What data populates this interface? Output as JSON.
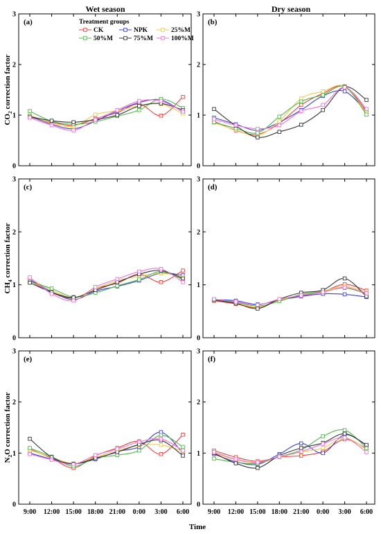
{
  "header": {
    "wet_title": "Wet season",
    "dry_title": "Dry season"
  },
  "x_axis_title": "Time",
  "legend": {
    "title": "Treatment groups",
    "entries": [
      "CK",
      "NPK",
      "25%M",
      "50%M",
      "75%M",
      "100%M"
    ],
    "placement": "top-left of panel (a)"
  },
  "colors": {
    "CK": "#e8413c",
    "NPK": "#3a3fd6",
    "25%M": "#f2c84b",
    "50%M": "#4fb848",
    "75%M": "#333333",
    "100%M": "#ef72d6"
  },
  "y_labels": {
    "co2": {
      "pre": "CO",
      "sub": "2",
      "post": " correction factor"
    },
    "ch4": {
      "pre": "CH",
      "sub": "4",
      "post": " correction factor"
    },
    "n2o": {
      "pre": "N",
      "sub": "2",
      "post": "O correction factor"
    }
  },
  "chart_data": [
    {
      "type": "line",
      "panel": "(a)",
      "season": "Wet season",
      "ylabel": "CO2 correction factor",
      "categories": [
        "9:00",
        "12:00",
        "15:00",
        "18:00",
        "21:00",
        "0:00",
        "3:00",
        "6:00"
      ],
      "ylim": [
        0,
        3
      ],
      "yticks": [
        0,
        1,
        2,
        3
      ],
      "grid": false,
      "series": [
        {
          "name": "CK",
          "values": [
            0.96,
            0.86,
            0.8,
            0.93,
            1.05,
            1.22,
            0.99,
            1.36
          ]
        },
        {
          "name": "NPK",
          "values": [
            0.98,
            0.82,
            0.73,
            0.88,
            1.08,
            1.25,
            1.3,
            1.06
          ]
        },
        {
          "name": "25%M",
          "values": [
            1.0,
            0.84,
            0.78,
            1.01,
            1.09,
            1.18,
            1.22,
            1.03
          ]
        },
        {
          "name": "50%M",
          "values": [
            1.08,
            0.88,
            0.82,
            0.87,
            0.98,
            1.1,
            1.32,
            1.14
          ]
        },
        {
          "name": "75%M",
          "values": [
            0.97,
            0.89,
            0.86,
            0.91,
            1.0,
            1.18,
            1.23,
            1.1
          ]
        },
        {
          "name": "100%M",
          "values": [
            0.95,
            0.8,
            0.7,
            0.91,
            1.1,
            1.28,
            1.28,
            1.07
          ]
        }
      ]
    },
    {
      "type": "line",
      "panel": "(b)",
      "season": "Dry season",
      "ylabel": "CO2 correction factor",
      "categories": [
        "9:00",
        "12:00",
        "15:00",
        "18:00",
        "21:00",
        "0:00",
        "3:00",
        "6:00"
      ],
      "ylim": [
        0,
        3
      ],
      "yticks": [
        0,
        1,
        2,
        3
      ],
      "grid": false,
      "series": [
        {
          "name": "CK",
          "values": [
            0.88,
            0.7,
            0.62,
            0.84,
            1.2,
            1.43,
            1.57,
            1.08
          ]
        },
        {
          "name": "NPK",
          "values": [
            0.95,
            0.82,
            0.7,
            0.86,
            1.1,
            1.38,
            1.47,
            1.07
          ]
        },
        {
          "name": "25%M",
          "values": [
            0.85,
            0.71,
            0.6,
            0.88,
            1.33,
            1.47,
            1.57,
            1.04
          ]
        },
        {
          "name": "50%M",
          "values": [
            0.86,
            0.74,
            0.65,
            0.97,
            1.27,
            1.4,
            1.56,
            1.01
          ]
        },
        {
          "name": "75%M",
          "values": [
            1.12,
            0.79,
            0.56,
            0.67,
            0.81,
            1.1,
            1.56,
            1.3
          ]
        },
        {
          "name": "100%M",
          "values": [
            0.92,
            0.8,
            0.73,
            0.8,
            1.08,
            1.2,
            1.55,
            1.12
          ]
        }
      ]
    },
    {
      "type": "line",
      "panel": "(c)",
      "season": "Wet season",
      "ylabel": "CH4 correction factor",
      "categories": [
        "9:00",
        "12:00",
        "15:00",
        "18:00",
        "21:00",
        "0:00",
        "3:00",
        "6:00"
      ],
      "ylim": [
        0,
        3
      ],
      "yticks": [
        0,
        1,
        2,
        3
      ],
      "grid": false,
      "series": [
        {
          "name": "CK",
          "values": [
            1.08,
            0.85,
            0.75,
            0.93,
            1.03,
            1.2,
            1.05,
            1.27
          ]
        },
        {
          "name": "NPK",
          "values": [
            1.1,
            0.87,
            0.72,
            0.88,
            0.97,
            1.08,
            1.22,
            1.18
          ]
        },
        {
          "name": "25%M",
          "values": [
            1.12,
            0.9,
            0.76,
            0.93,
            1.08,
            1.16,
            1.22,
            1.15
          ]
        },
        {
          "name": "50%M",
          "values": [
            1.06,
            0.93,
            0.77,
            0.85,
            0.98,
            1.1,
            1.25,
            1.1
          ]
        },
        {
          "name": "75%M",
          "values": [
            1.04,
            0.86,
            0.76,
            0.9,
            1.05,
            1.2,
            1.27,
            1.12
          ]
        },
        {
          "name": "100%M",
          "values": [
            1.14,
            0.83,
            0.7,
            0.96,
            1.11,
            1.25,
            1.3,
            1.05
          ]
        }
      ]
    },
    {
      "type": "line",
      "panel": "(d)",
      "season": "Dry season",
      "ylabel": "CH4 correction factor",
      "categories": [
        "9:00",
        "12:00",
        "15:00",
        "18:00",
        "21:00",
        "0:00",
        "3:00",
        "6:00"
      ],
      "ylim": [
        0,
        3
      ],
      "yticks": [
        0,
        1,
        2,
        3
      ],
      "grid": false,
      "series": [
        {
          "name": "CK",
          "values": [
            0.7,
            0.64,
            0.57,
            0.72,
            0.79,
            0.87,
            1.01,
            0.89
          ]
        },
        {
          "name": "NPK",
          "values": [
            0.72,
            0.7,
            0.63,
            0.71,
            0.78,
            0.83,
            0.82,
            0.77
          ]
        },
        {
          "name": "25%M",
          "values": [
            0.71,
            0.66,
            0.58,
            0.71,
            0.81,
            0.88,
            0.97,
            0.86
          ]
        },
        {
          "name": "50%M",
          "values": [
            0.72,
            0.67,
            0.6,
            0.69,
            0.82,
            0.87,
            0.94,
            0.83
          ]
        },
        {
          "name": "75%M",
          "values": [
            0.71,
            0.65,
            0.55,
            0.73,
            0.85,
            0.9,
            1.12,
            0.78
          ]
        },
        {
          "name": "100%M",
          "values": [
            0.73,
            0.68,
            0.62,
            0.73,
            0.8,
            0.86,
            0.95,
            0.84
          ]
        }
      ]
    },
    {
      "type": "line",
      "panel": "(e)",
      "season": "Wet season",
      "ylabel": "N2O correction factor",
      "categories": [
        "9:00",
        "12:00",
        "15:00",
        "18:00",
        "21:00",
        "0:00",
        "3:00",
        "6:00"
      ],
      "ylim": [
        0,
        3
      ],
      "yticks": [
        0,
        1,
        2,
        3
      ],
      "grid": false,
      "series": [
        {
          "name": "CK",
          "values": [
            1.08,
            0.9,
            0.71,
            0.95,
            1.1,
            1.23,
            0.98,
            1.36
          ]
        },
        {
          "name": "NPK",
          "values": [
            1.0,
            0.88,
            0.79,
            0.88,
            1.03,
            1.12,
            1.41,
            1.0
          ]
        },
        {
          "name": "25%M",
          "values": [
            1.06,
            0.92,
            0.8,
            0.92,
            1.05,
            1.15,
            1.16,
            1.04
          ]
        },
        {
          "name": "50%M",
          "values": [
            1.1,
            0.93,
            0.74,
            0.9,
            0.96,
            1.05,
            1.35,
            1.12
          ]
        },
        {
          "name": "75%M",
          "values": [
            1.28,
            0.92,
            0.79,
            0.9,
            1.02,
            1.17,
            1.25,
            0.95
          ]
        },
        {
          "name": "100%M",
          "values": [
            0.98,
            0.87,
            0.78,
            0.96,
            1.08,
            1.22,
            1.28,
            1.05
          ]
        }
      ]
    },
    {
      "type": "line",
      "panel": "(f)",
      "season": "Dry season",
      "ylabel": "N2O correction factor",
      "categories": [
        "9:00",
        "12:00",
        "15:00",
        "18:00",
        "21:00",
        "0:00",
        "3:00",
        "6:00"
      ],
      "ylim": [
        0,
        3
      ],
      "yticks": [
        0,
        1,
        2,
        3
      ],
      "grid": false,
      "series": [
        {
          "name": "CK",
          "values": [
            1.05,
            0.92,
            0.84,
            0.92,
            0.95,
            1.03,
            1.27,
            1.09
          ]
        },
        {
          "name": "NPK",
          "values": [
            0.98,
            0.83,
            0.78,
            0.98,
            1.19,
            1.0,
            1.36,
            1.15
          ]
        },
        {
          "name": "25%M",
          "values": [
            1.0,
            0.87,
            0.81,
            0.92,
            1.02,
            1.1,
            1.3,
            1.07
          ]
        },
        {
          "name": "50%M",
          "values": [
            0.89,
            0.82,
            0.8,
            0.93,
            1.06,
            1.33,
            1.45,
            1.1
          ]
        },
        {
          "name": "75%M",
          "values": [
            1.0,
            0.8,
            0.71,
            0.95,
            1.1,
            1.2,
            1.38,
            1.16
          ]
        },
        {
          "name": "100%M",
          "values": [
            1.02,
            0.88,
            0.82,
            0.93,
            1.03,
            1.18,
            1.3,
            1.02
          ]
        }
      ]
    }
  ]
}
